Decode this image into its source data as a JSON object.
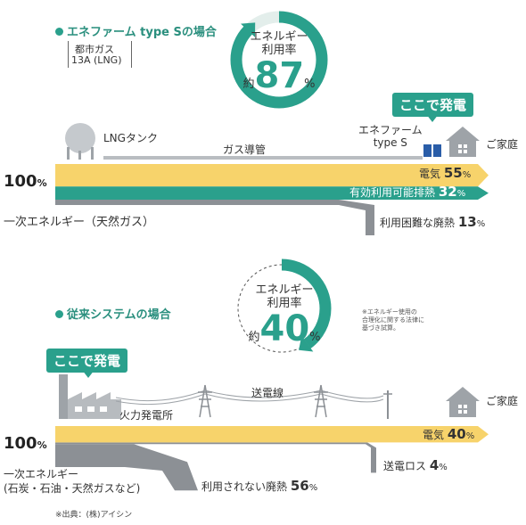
{
  "enefarm": {
    "title": "エネファーム type Sの場合",
    "gas_note_line1": "都市ガス",
    "gas_note_line2": "13A (LNG)",
    "efficiency_label_line1": "エネルギー",
    "efficiency_label_line2": "利用率",
    "efficiency_prefix": "約",
    "efficiency_value": "87",
    "efficiency_unit": "%",
    "efficiency_fraction": 0.87,
    "callout": "ここで発電",
    "unit_label_line1": "エネファーム",
    "unit_label_line2": "type S",
    "home_label": "ご家庭",
    "tank_label": "LNGタンク",
    "pipe_label": "ガス導管",
    "total": "100",
    "total_unit": "%",
    "source_label": "一次エネルギー（天然ガス）",
    "flows": {
      "electricity_label": "電気",
      "electricity_value": "55",
      "heat_label": "有効利用可能排熱",
      "heat_value": "32",
      "loss_label": "利用困難な廃熱",
      "loss_value": "13",
      "unit": "%"
    }
  },
  "conventional": {
    "title": "従来システムの場合",
    "efficiency_label_line1": "エネルギー",
    "efficiency_label_line2": "利用率",
    "efficiency_prefix": "約",
    "efficiency_value": "40",
    "efficiency_unit": "%",
    "efficiency_fraction": 0.4,
    "footnote_line1": "※エネルギー使用の",
    "footnote_line2": "合理化に関する法律に",
    "footnote_line3": "基づき試算。",
    "callout": "ここで発電",
    "plant_label": "火力発電所",
    "line_label": "送電線",
    "home_label": "ご家庭",
    "total": "100",
    "total_unit": "%",
    "source_label_line1": "一次エネルギー",
    "source_label_line2": "(石炭・石油・天然ガスなど)",
    "flows": {
      "electricity_label": "電気",
      "electricity_value": "40",
      "loss_label": "送電ロス",
      "loss_value": "4",
      "waste_label": "利用されない廃熱",
      "waste_value": "56",
      "unit": "%"
    }
  },
  "source_credit": "※出典：(株)アイシン",
  "colors": {
    "teal": "#2aa08c",
    "yellow": "#f7d36b",
    "gray": "#8c9095",
    "light_gray": "#c9ccd0"
  }
}
